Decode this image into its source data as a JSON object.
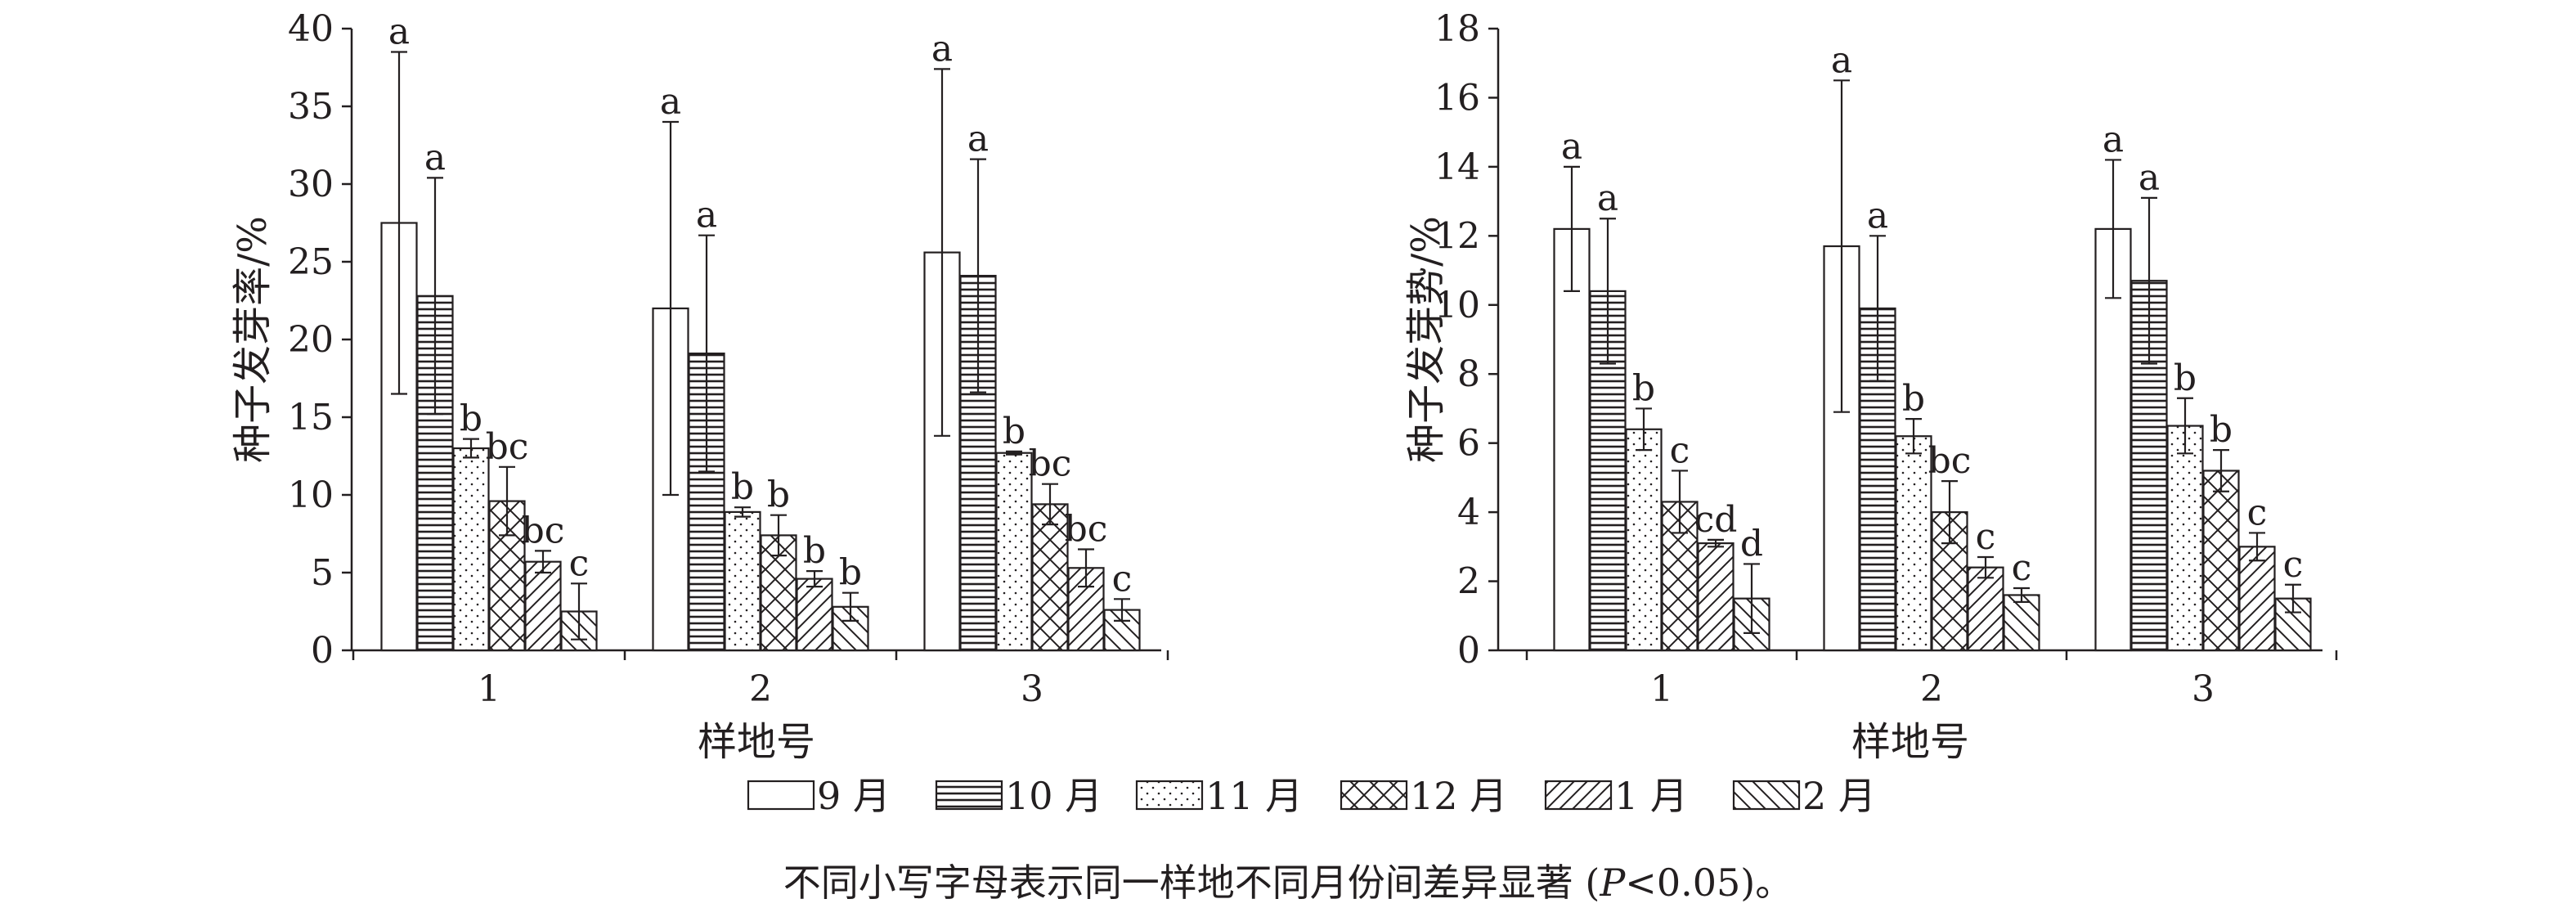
{
  "chart_data": [
    {
      "type": "bar",
      "ylabel": "种子发芽率/%",
      "xlabel": "样地号",
      "categories": [
        "1",
        "2",
        "3"
      ],
      "ylim": [
        0,
        40
      ],
      "yticks": [
        "0",
        "5",
        "10",
        "15",
        "20",
        "25",
        "30",
        "35",
        "40"
      ],
      "series": [
        {
          "name": "9 月",
          "values": [
            27.5,
            22.0,
            25.6
          ],
          "errors": [
            11.0,
            12.0,
            11.8
          ],
          "letters": [
            "a",
            "a",
            "a"
          ]
        },
        {
          "name": "10 月",
          "values": [
            22.8,
            19.1,
            24.1
          ],
          "errors": [
            7.6,
            7.6,
            7.5
          ],
          "letters": [
            "a",
            "a",
            "a"
          ]
        },
        {
          "name": "11 月",
          "values": [
            13.0,
            8.9,
            12.7
          ],
          "errors": [
            0.6,
            0.3,
            0.1
          ],
          "letters": [
            "b",
            "b",
            "b"
          ]
        },
        {
          "name": "12 月",
          "values": [
            9.6,
            7.4,
            9.4
          ],
          "errors": [
            2.2,
            1.3,
            1.3
          ],
          "letters": [
            "bc",
            "b",
            "bc"
          ]
        },
        {
          "name": "1 月",
          "values": [
            5.7,
            4.6,
            5.3
          ],
          "errors": [
            0.7,
            0.5,
            1.2
          ],
          "letters": [
            "bc",
            "b",
            "bc"
          ]
        },
        {
          "name": "2 月",
          "values": [
            2.5,
            2.8,
            2.6
          ],
          "errors": [
            1.8,
            0.9,
            0.7
          ],
          "letters": [
            "c",
            "b",
            "c"
          ]
        }
      ]
    },
    {
      "type": "bar",
      "ylabel": "种子发芽势/%",
      "xlabel": "样地号",
      "categories": [
        "1",
        "2",
        "3"
      ],
      "ylim": [
        0,
        18
      ],
      "yticks": [
        "0",
        "2",
        "4",
        "6",
        "8",
        "10",
        "12",
        "14",
        "16",
        "18"
      ],
      "series": [
        {
          "name": "9 月",
          "values": [
            12.2,
            11.7,
            12.2
          ],
          "errors": [
            1.8,
            4.8,
            2.0
          ],
          "letters": [
            "a",
            "a",
            "a"
          ]
        },
        {
          "name": "10 月",
          "values": [
            10.4,
            9.9,
            10.7
          ],
          "errors": [
            2.1,
            2.1,
            2.4
          ],
          "letters": [
            "a",
            "a",
            "a"
          ]
        },
        {
          "name": "11 月",
          "values": [
            6.4,
            6.2,
            6.5
          ],
          "errors": [
            0.6,
            0.5,
            0.8
          ],
          "letters": [
            "b",
            "b",
            "b"
          ]
        },
        {
          "name": "12 月",
          "values": [
            4.3,
            4.0,
            5.2
          ],
          "errors": [
            0.9,
            0.9,
            0.6
          ],
          "letters": [
            "c",
            "bc",
            "b"
          ]
        },
        {
          "name": "1 月",
          "values": [
            3.1,
            2.4,
            3.0
          ],
          "errors": [
            0.1,
            0.3,
            0.4
          ],
          "letters": [
            "cd",
            "c",
            "c"
          ]
        },
        {
          "name": "2 月",
          "values": [
            1.5,
            1.6,
            1.5
          ],
          "errors": [
            1.0,
            0.2,
            0.4
          ],
          "letters": [
            "d",
            "c",
            "c"
          ]
        }
      ]
    }
  ],
  "legend": {
    "items": [
      "9 月",
      "10 月",
      "11 月",
      "12 月",
      "1 月",
      "2 月"
    ],
    "patterns": [
      "blank-fill",
      "horizontal-lines",
      "dots",
      "crosshatch",
      "diagonal-forward",
      "diagonal-backward"
    ]
  },
  "note": {
    "before": "不同小写字母表示同一样地不同月份间差异显著 (",
    "italic": "P",
    "after": "<0.05)。"
  },
  "colors": {
    "ink": "#231f20",
    "background": "#ffffff"
  }
}
